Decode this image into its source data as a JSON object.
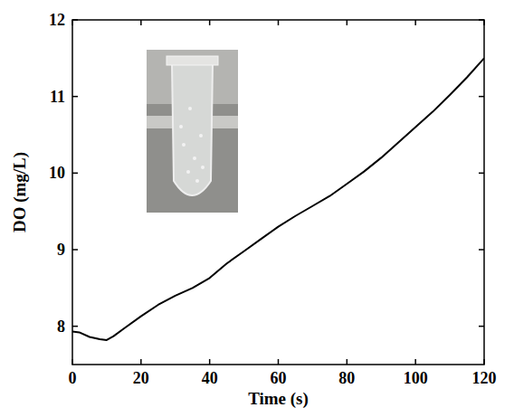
{
  "chart_data": {
    "type": "line",
    "x_label": "Time (s)",
    "y_label": "DO (mg/L)",
    "x": [
      0,
      2,
      5,
      8,
      10,
      12,
      15,
      20,
      25,
      30,
      35,
      40,
      45,
      50,
      55,
      60,
      65,
      70,
      75,
      80,
      85,
      90,
      95,
      100,
      105,
      110,
      115,
      120
    ],
    "values": [
      7.93,
      7.92,
      7.86,
      7.83,
      7.82,
      7.87,
      7.97,
      8.13,
      8.28,
      8.4,
      8.5,
      8.63,
      8.82,
      8.98,
      9.14,
      9.3,
      9.44,
      9.57,
      9.7,
      9.86,
      10.02,
      10.2,
      10.4,
      10.6,
      10.8,
      11.02,
      11.25,
      11.5
    ],
    "color": "#000000",
    "xlim": [
      0,
      120
    ],
    "ylim": [
      7.5,
      12
    ],
    "xticks": [
      0,
      20,
      40,
      60,
      80,
      100,
      120
    ],
    "yticks": [
      8,
      9,
      10,
      11,
      12
    ],
    "grid": false
  }
}
